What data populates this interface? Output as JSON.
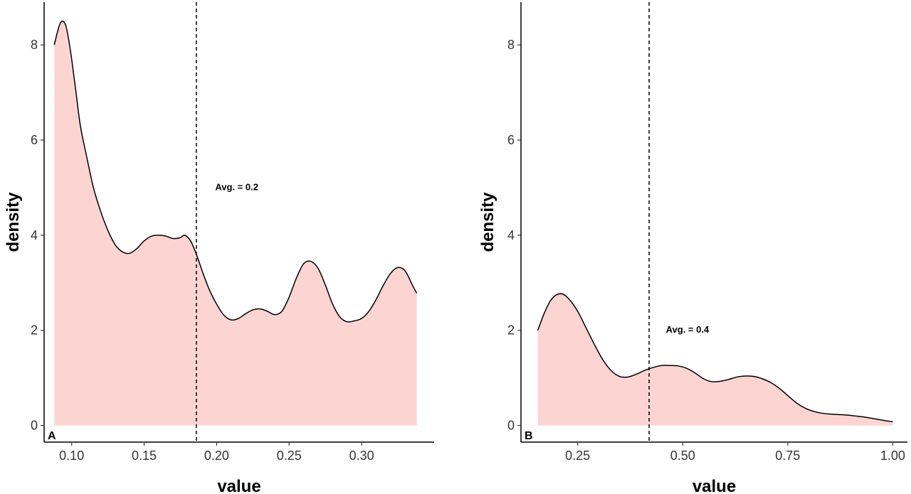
{
  "chart_data": [
    {
      "type": "area",
      "panel_tag": "A",
      "xlabel": "value",
      "ylabel": "density",
      "xlim": [
        0.081,
        0.35
      ],
      "ylim": [
        -0.35,
        8.9
      ],
      "x_ticks": [
        0.1,
        0.15,
        0.2,
        0.25,
        0.3
      ],
      "x_tick_labels": [
        "0.10",
        "0.15",
        "0.20",
        "0.25",
        "0.30"
      ],
      "y_ticks": [
        0,
        2,
        4,
        6,
        8
      ],
      "y_tick_labels": [
        "0",
        "2",
        "4",
        "6",
        "8"
      ],
      "fill_color": "#fcd5d3",
      "line_color": "#000000",
      "grid": false,
      "series": [
        {
          "x": [
            0.088,
            0.09,
            0.092,
            0.094,
            0.096,
            0.098,
            0.1,
            0.103,
            0.106,
            0.11,
            0.115,
            0.12,
            0.125,
            0.13,
            0.135,
            0.14,
            0.145,
            0.15,
            0.155,
            0.16,
            0.165,
            0.17,
            0.175,
            0.178,
            0.182,
            0.186,
            0.19,
            0.195,
            0.2,
            0.205,
            0.21,
            0.215,
            0.22,
            0.225,
            0.23,
            0.235,
            0.24,
            0.245,
            0.25,
            0.255,
            0.26,
            0.265,
            0.27,
            0.275,
            0.28,
            0.285,
            0.29,
            0.295,
            0.3,
            0.305,
            0.31,
            0.315,
            0.32,
            0.325,
            0.33,
            0.335,
            0.338
          ],
          "y": [
            8.0,
            8.25,
            8.45,
            8.5,
            8.4,
            8.1,
            7.7,
            7.0,
            6.3,
            5.7,
            5.0,
            4.5,
            4.1,
            3.8,
            3.65,
            3.62,
            3.72,
            3.88,
            3.98,
            4.0,
            3.98,
            3.93,
            3.95,
            4.0,
            3.88,
            3.6,
            3.25,
            2.85,
            2.55,
            2.32,
            2.22,
            2.25,
            2.35,
            2.43,
            2.45,
            2.4,
            2.33,
            2.4,
            2.7,
            3.1,
            3.4,
            3.45,
            3.3,
            2.95,
            2.55,
            2.28,
            2.18,
            2.2,
            2.25,
            2.4,
            2.65,
            2.95,
            3.2,
            3.32,
            3.25,
            2.95,
            2.78
          ]
        }
      ],
      "annotations": [
        {
          "type": "vline",
          "x": 0.186,
          "label": "Avg. = 0.2",
          "label_x": 0.199,
          "label_y": 4.95
        }
      ]
    },
    {
      "type": "area",
      "panel_tag": "B",
      "xlabel": "value",
      "ylabel": "density",
      "xlim": [
        0.115,
        1.035
      ],
      "ylim": [
        -0.35,
        8.9
      ],
      "x_ticks": [
        0.25,
        0.5,
        0.75,
        1.0
      ],
      "x_tick_labels": [
        "0.25",
        "0.50",
        "0.75",
        "1.00"
      ],
      "y_ticks": [
        0,
        2,
        4,
        6,
        8
      ],
      "y_tick_labels": [
        "0",
        "2",
        "4",
        "6",
        "8"
      ],
      "fill_color": "#fcd5d3",
      "line_color": "#000000",
      "grid": false,
      "series": [
        {
          "x": [
            0.155,
            0.17,
            0.185,
            0.2,
            0.215,
            0.23,
            0.25,
            0.27,
            0.29,
            0.31,
            0.33,
            0.35,
            0.37,
            0.39,
            0.41,
            0.43,
            0.45,
            0.47,
            0.49,
            0.51,
            0.53,
            0.55,
            0.57,
            0.59,
            0.61,
            0.63,
            0.65,
            0.67,
            0.69,
            0.71,
            0.73,
            0.75,
            0.77,
            0.79,
            0.81,
            0.83,
            0.85,
            0.87,
            0.89,
            0.91,
            0.93,
            0.95,
            0.97,
            0.99,
            1.0
          ],
          "y": [
            2.0,
            2.35,
            2.62,
            2.75,
            2.76,
            2.65,
            2.4,
            2.05,
            1.7,
            1.38,
            1.15,
            1.03,
            1.02,
            1.08,
            1.16,
            1.22,
            1.26,
            1.26,
            1.25,
            1.2,
            1.1,
            0.98,
            0.92,
            0.93,
            0.97,
            1.02,
            1.04,
            1.03,
            0.98,
            0.9,
            0.78,
            0.63,
            0.48,
            0.37,
            0.3,
            0.26,
            0.24,
            0.23,
            0.22,
            0.2,
            0.18,
            0.15,
            0.12,
            0.09,
            0.08
          ]
        }
      ],
      "annotations": [
        {
          "type": "vline",
          "x": 0.42,
          "label": "Avg. = 0.4",
          "label_x": 0.46,
          "label_y": 1.95
        }
      ]
    }
  ]
}
